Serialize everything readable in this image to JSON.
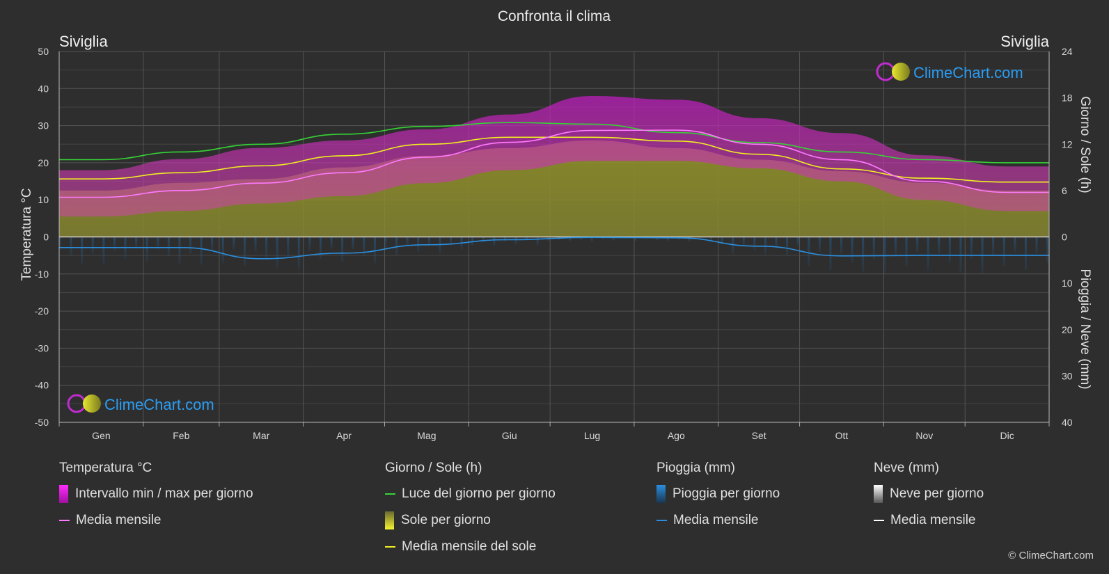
{
  "title": "Confronta il clima",
  "location_left": "Siviglia",
  "location_right": "Siviglia",
  "watermark": "ClimeChart.com",
  "copyright": "© ClimeChart.com",
  "colors": {
    "background": "#2e2e2e",
    "temp_range": "#d21ad2",
    "temp_mean": "#ff7aff",
    "daylight": "#35d435",
    "sunshine": "#a6a62a",
    "sun_mean": "#f0f020",
    "rain": "#1f6fb0",
    "rain_mean": "#2a8fe0",
    "snow": "#ffffff",
    "brand": "#2a9df4"
  },
  "chart_data": {
    "type": "area",
    "x_label": "",
    "months": [
      "Gen",
      "Feb",
      "Mar",
      "Apr",
      "Mag",
      "Giu",
      "Lug",
      "Ago",
      "Set",
      "Ott",
      "Nov",
      "Dic"
    ],
    "left_axis": {
      "label": "Temperatura °C",
      "range": [
        -50,
        50
      ],
      "ticks": [
        50,
        40,
        30,
        20,
        10,
        0,
        -10,
        -20,
        -30,
        -40,
        -50
      ]
    },
    "right_axis_top": {
      "label": "Giorno / Sole (h)",
      "range": [
        0,
        24
      ],
      "ticks": [
        24,
        18,
        12,
        6,
        0
      ]
    },
    "right_axis_bottom": {
      "label": "Pioggia / Neve (mm)",
      "range": [
        0,
        40
      ],
      "ticks": [
        0,
        10,
        20,
        30,
        40
      ]
    },
    "series": [
      {
        "name": "Intervallo min / max per giorno",
        "unit": "°C",
        "min": [
          5.5,
          7,
          9,
          11,
          14.5,
          18,
          20.5,
          20.5,
          18.5,
          15,
          10,
          7
        ],
        "max": [
          18,
          21,
          24,
          26,
          29,
          33,
          38,
          37,
          32,
          28,
          22,
          19
        ]
      },
      {
        "name": "Media mensile",
        "unit": "°C",
        "values": [
          10.7,
          12.5,
          14.5,
          17.3,
          21.5,
          25.5,
          28.7,
          28.8,
          25,
          20.8,
          15,
          12
        ]
      },
      {
        "name": "Luce del giorno per giorno",
        "unit": "h",
        "values": [
          10,
          11,
          12,
          13.3,
          14.3,
          14.8,
          14.6,
          13.5,
          12.2,
          11,
          10,
          9.6
        ]
      },
      {
        "name": "Sole per giorno",
        "unit": "h",
        "values": [
          6,
          7,
          7.5,
          9,
          10.5,
          11.5,
          12.5,
          11.5,
          10,
          8.5,
          7,
          6
        ]
      },
      {
        "name": "Media mensile del sole",
        "unit": "h",
        "values": [
          7.5,
          8.3,
          9.2,
          10.5,
          12,
          12.9,
          12.9,
          12.4,
          10.7,
          8.8,
          7.6,
          7.1
        ]
      },
      {
        "name": "Pioggia per giorno",
        "unit": "mm",
        "values": [
          6,
          6,
          7,
          6,
          4,
          2,
          1,
          1,
          4,
          8,
          8,
          8
        ]
      },
      {
        "name": "Media mensile",
        "unit": "mm",
        "values": [
          2.3,
          2.3,
          4.7,
          3.5,
          1.7,
          0.6,
          0.1,
          0.2,
          2,
          4.1,
          4,
          4
        ]
      }
    ]
  },
  "legend": [
    {
      "header": "Temperatura °C",
      "items": [
        {
          "label": "Intervallo min / max per giorno",
          "swatch": "bar-magenta"
        },
        {
          "label": "Media mensile",
          "swatch": "line-pink"
        }
      ]
    },
    {
      "header": "Giorno / Sole (h)",
      "items": [
        {
          "label": "Luce del giorno per giorno",
          "swatch": "line-green"
        },
        {
          "label": "Sole per giorno",
          "swatch": "bar-yellow"
        },
        {
          "label": "Media mensile del sole",
          "swatch": "line-yellow"
        }
      ]
    },
    {
      "header": "Pioggia (mm)",
      "items": [
        {
          "label": "Pioggia per giorno",
          "swatch": "bar-blue"
        },
        {
          "label": "Media mensile",
          "swatch": "line-blue"
        }
      ]
    },
    {
      "header": "Neve (mm)",
      "items": [
        {
          "label": "Neve per giorno",
          "swatch": "bar-white"
        },
        {
          "label": "Media mensile",
          "swatch": "line-white"
        }
      ]
    }
  ]
}
